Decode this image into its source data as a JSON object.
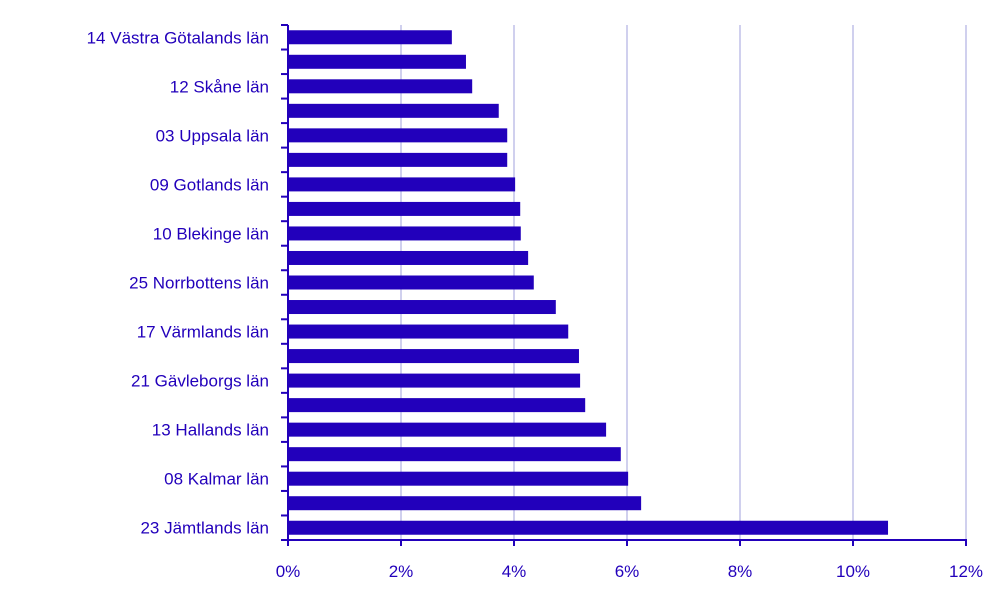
{
  "chart_data": {
    "type": "bar",
    "orientation": "horizontal",
    "categories": [
      "14 Västra Götalands län",
      "",
      "12 Skåne län",
      "",
      "03 Uppsala län",
      "",
      "09 Gotlands län",
      "",
      "10 Blekinge län",
      "",
      "25 Norrbottens län",
      "",
      "17 Värmlands län",
      "",
      "21 Gävleborgs län",
      "",
      "13 Hallands län",
      "",
      "08 Kalmar län",
      "",
      "23 Jämtlands län"
    ],
    "values": [
      2.9,
      3.15,
      3.26,
      3.73,
      3.88,
      3.88,
      4.02,
      4.11,
      4.12,
      4.25,
      4.35,
      4.74,
      4.96,
      5.15,
      5.17,
      5.26,
      5.63,
      5.89,
      6.02,
      6.25,
      10.62
    ],
    "xlim": [
      0,
      12
    ],
    "xticks": [
      "0%",
      "2%",
      "4%",
      "6%",
      "8%",
      "10%",
      "12%"
    ],
    "tick_values": [
      0,
      2,
      4,
      6,
      8,
      10,
      12
    ],
    "grid": true,
    "colors": {
      "bar": "#2200bb",
      "grid": "#d0d0ee",
      "text": "#2200bb"
    }
  }
}
